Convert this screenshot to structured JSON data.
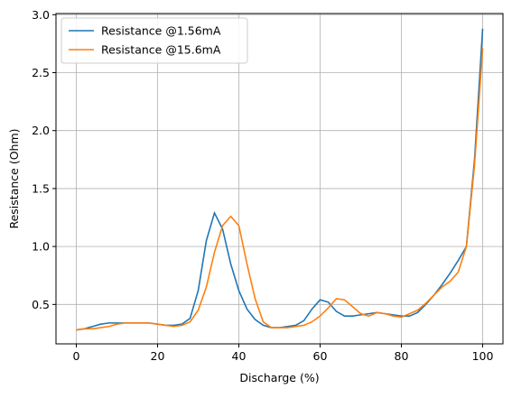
{
  "chart_data": {
    "type": "line",
    "xlabel": "Discharge (%)",
    "ylabel": "Resistance (Ohm)",
    "x": [
      0,
      2,
      4,
      6,
      8,
      10,
      12,
      14,
      16,
      18,
      20,
      22,
      24,
      26,
      28,
      30,
      32,
      34,
      36,
      38,
      40,
      42,
      44,
      46,
      48,
      50,
      52,
      54,
      56,
      58,
      60,
      62,
      64,
      66,
      68,
      70,
      72,
      74,
      76,
      78,
      80,
      82,
      84,
      86,
      88,
      90,
      92,
      94,
      96,
      98,
      100
    ],
    "series": [
      {
        "name": "Resistance @1.56mA",
        "color": "#1f77b4",
        "values": [
          0.28,
          0.29,
          0.31,
          0.33,
          0.34,
          0.34,
          0.34,
          0.34,
          0.34,
          0.34,
          0.33,
          0.32,
          0.32,
          0.33,
          0.38,
          0.62,
          1.05,
          1.29,
          1.15,
          0.85,
          0.62,
          0.46,
          0.37,
          0.32,
          0.3,
          0.3,
          0.31,
          0.32,
          0.36,
          0.46,
          0.54,
          0.52,
          0.44,
          0.4,
          0.4,
          0.41,
          0.42,
          0.43,
          0.42,
          0.41,
          0.4,
          0.4,
          0.43,
          0.5,
          0.58,
          0.67,
          0.77,
          0.88,
          1.0,
          1.75,
          2.88
        ]
      },
      {
        "name": "Resistance @15.6mA",
        "color": "#ff7f0e",
        "values": [
          0.28,
          0.29,
          0.29,
          0.3,
          0.31,
          0.33,
          0.34,
          0.34,
          0.34,
          0.34,
          0.33,
          0.32,
          0.31,
          0.32,
          0.35,
          0.45,
          0.65,
          0.95,
          1.18,
          1.26,
          1.18,
          0.85,
          0.55,
          0.35,
          0.3,
          0.3,
          0.3,
          0.31,
          0.32,
          0.35,
          0.4,
          0.47,
          0.55,
          0.54,
          0.48,
          0.42,
          0.4,
          0.43,
          0.42,
          0.4,
          0.39,
          0.42,
          0.45,
          0.51,
          0.58,
          0.65,
          0.7,
          0.78,
          1.0,
          1.7,
          2.71
        ]
      }
    ],
    "xlim": [
      -5,
      105
    ],
    "xticks": [
      0,
      20,
      40,
      60,
      80,
      100
    ],
    "ylim": [
      0.16,
      3.01
    ],
    "yticks": [
      0.5,
      {
        "value": 1.0,
        "label": "1.0"
      },
      1.5,
      {
        "value": 2.0,
        "label": "2.0"
      },
      2.5,
      {
        "value": 3.0,
        "label": "3.0"
      }
    ],
    "grid": true,
    "legend": "upper-left"
  }
}
